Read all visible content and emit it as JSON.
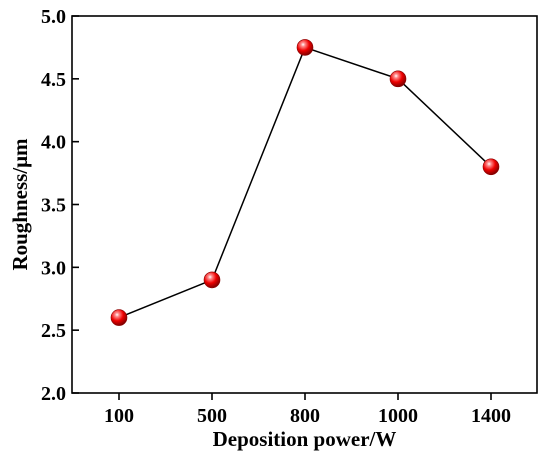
{
  "chart_data": {
    "type": "line",
    "title": "",
    "xlabel": "Deposition power/W",
    "ylabel": "Roughness/μm",
    "categories": [
      "100",
      "500",
      "800",
      "1000",
      "1400"
    ],
    "series": [
      {
        "values": [
          2.6,
          2.9,
          4.75,
          4.5,
          3.8
        ]
      }
    ],
    "ylim": [
      2.0,
      5.0
    ],
    "yticks": [
      "2.0",
      "2.5",
      "3.0",
      "3.5",
      "4.0",
      "4.5",
      "5.0"
    ],
    "grid": false,
    "legend": "none",
    "colors": {
      "line": "#000000",
      "marker": "#e8000b",
      "axis": "#000000"
    }
  }
}
